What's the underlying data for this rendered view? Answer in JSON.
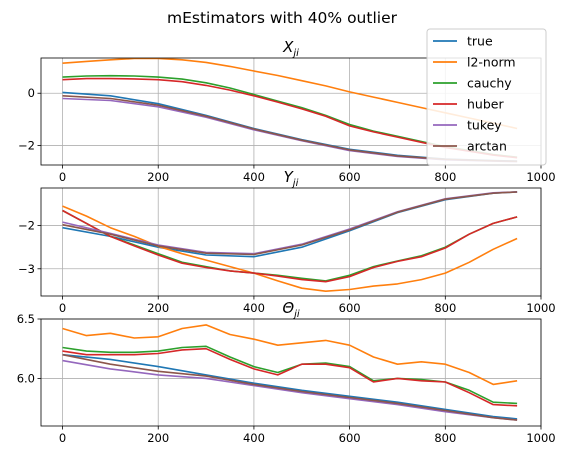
{
  "figure": {
    "suptitle": "mEstimators with 40% outlier",
    "legend": [
      "true",
      "l2-norm",
      "cauchy",
      "huber",
      "tukey",
      "arctan"
    ],
    "colors": {
      "true": "#1f77b4",
      "l2-norm": "#ff7f0e",
      "cauchy": "#2ca02c",
      "huber": "#d62728",
      "tukey": "#9467bd",
      "arctan": "#8c564b"
    }
  },
  "chart_data": [
    {
      "type": "line",
      "title": "X_ji",
      "title_main": "X",
      "title_sub": "ji",
      "xlim": [
        -45,
        1000
      ],
      "ylim": [
        -2.75,
        1.35
      ],
      "xticks": [
        0,
        200,
        400,
        600,
        800,
        1000
      ],
      "yticks": [
        0,
        -2
      ],
      "ytick_labels": [
        "0",
        "−2"
      ],
      "grid": true,
      "legend_position": "top-right",
      "series": [
        {
          "name": "true",
          "x": [
            0,
            100,
            200,
            300,
            400,
            500,
            600,
            700,
            800,
            900,
            950
          ],
          "y": [
            0.03,
            -0.1,
            -0.4,
            -0.85,
            -1.35,
            -1.78,
            -2.15,
            -2.38,
            -2.52,
            -2.58,
            -2.6
          ]
        },
        {
          "name": "l2-norm",
          "x": [
            0,
            50,
            100,
            150,
            200,
            250,
            300,
            350,
            400,
            450,
            500,
            550,
            600,
            650,
            700,
            750,
            800,
            850,
            900,
            950
          ],
          "y": [
            1.15,
            1.22,
            1.28,
            1.33,
            1.33,
            1.28,
            1.18,
            1.03,
            0.85,
            0.68,
            0.48,
            0.28,
            0.05,
            -0.15,
            -0.35,
            -0.55,
            -0.75,
            -0.95,
            -1.15,
            -1.35
          ]
        },
        {
          "name": "cauchy",
          "x": [
            0,
            50,
            100,
            150,
            200,
            250,
            300,
            350,
            400,
            450,
            500,
            550,
            600,
            650,
            700,
            750,
            800,
            850,
            900,
            950
          ],
          "y": [
            0.62,
            0.66,
            0.67,
            0.66,
            0.62,
            0.54,
            0.4,
            0.2,
            -0.05,
            -0.3,
            -0.55,
            -0.85,
            -1.2,
            -1.45,
            -1.65,
            -1.85,
            -2.05,
            -2.2,
            -2.35,
            -2.45
          ]
        },
        {
          "name": "huber",
          "x": [
            0,
            50,
            100,
            150,
            200,
            250,
            300,
            350,
            400,
            450,
            500,
            550,
            600,
            650,
            700,
            750,
            800,
            850,
            900,
            950
          ],
          "y": [
            0.52,
            0.56,
            0.56,
            0.55,
            0.52,
            0.44,
            0.3,
            0.12,
            -0.1,
            -0.34,
            -0.6,
            -0.88,
            -1.25,
            -1.48,
            -1.68,
            -1.88,
            -2.08,
            -2.22,
            -2.37,
            -2.47
          ]
        },
        {
          "name": "tukey",
          "x": [
            0,
            100,
            200,
            300,
            400,
            500,
            600,
            700,
            800,
            900,
            950
          ],
          "y": [
            -0.2,
            -0.28,
            -0.52,
            -0.92,
            -1.4,
            -1.82,
            -2.2,
            -2.42,
            -2.55,
            -2.6,
            -2.62
          ]
        },
        {
          "name": "arctan",
          "x": [
            0,
            100,
            200,
            300,
            400,
            500,
            600,
            700,
            800,
            900,
            950
          ],
          "y": [
            -0.1,
            -0.2,
            -0.46,
            -0.88,
            -1.37,
            -1.8,
            -2.17,
            -2.4,
            -2.53,
            -2.59,
            -2.61
          ]
        }
      ]
    },
    {
      "type": "line",
      "title": "Y_ji",
      "title_main": "Y",
      "title_sub": "ji",
      "xlim": [
        -45,
        1000
      ],
      "ylim": [
        -3.63,
        -1.13
      ],
      "xticks": [
        0,
        200,
        400,
        600,
        800,
        1000
      ],
      "yticks": [
        -2,
        -3
      ],
      "ytick_labels": [
        "−2",
        "−3"
      ],
      "grid": true,
      "series": [
        {
          "name": "true",
          "x": [
            0,
            100,
            200,
            300,
            400,
            500,
            600,
            700,
            800,
            900,
            950
          ],
          "y": [
            -2.05,
            -2.25,
            -2.5,
            -2.68,
            -2.72,
            -2.5,
            -2.12,
            -1.7,
            -1.4,
            -1.25,
            -1.22
          ]
        },
        {
          "name": "l2-norm",
          "x": [
            0,
            50,
            100,
            150,
            200,
            250,
            300,
            350,
            400,
            450,
            500,
            550,
            600,
            650,
            700,
            750,
            800,
            850,
            900,
            950
          ],
          "y": [
            -1.55,
            -1.78,
            -2.05,
            -2.25,
            -2.48,
            -2.65,
            -2.8,
            -2.95,
            -3.1,
            -3.28,
            -3.45,
            -3.52,
            -3.48,
            -3.4,
            -3.35,
            -3.25,
            -3.1,
            -2.85,
            -2.55,
            -2.3
          ]
        },
        {
          "name": "cauchy",
          "x": [
            0,
            50,
            100,
            150,
            200,
            250,
            300,
            350,
            400,
            450,
            500,
            550,
            600,
            650,
            700,
            750,
            800,
            850,
            900,
            950
          ],
          "y": [
            -1.65,
            -1.95,
            -2.25,
            -2.45,
            -2.65,
            -2.85,
            -2.95,
            -3.05,
            -3.1,
            -3.15,
            -3.22,
            -3.28,
            -3.15,
            -2.95,
            -2.82,
            -2.7,
            -2.5,
            -2.2,
            -1.95,
            -1.8
          ]
        },
        {
          "name": "huber",
          "x": [
            0,
            50,
            100,
            150,
            200,
            250,
            300,
            350,
            400,
            450,
            500,
            550,
            600,
            650,
            700,
            750,
            800,
            850,
            900,
            950
          ],
          "y": [
            -1.65,
            -1.95,
            -2.25,
            -2.47,
            -2.68,
            -2.87,
            -2.97,
            -3.05,
            -3.1,
            -3.17,
            -3.25,
            -3.3,
            -3.18,
            -2.97,
            -2.83,
            -2.72,
            -2.52,
            -2.2,
            -1.95,
            -1.8
          ]
        },
        {
          "name": "tukey",
          "x": [
            0,
            100,
            200,
            300,
            400,
            500,
            600,
            700,
            800,
            900,
            950
          ],
          "y": [
            -1.92,
            -2.18,
            -2.45,
            -2.62,
            -2.65,
            -2.43,
            -2.08,
            -1.68,
            -1.38,
            -1.24,
            -1.22
          ]
        },
        {
          "name": "arctan",
          "x": [
            0,
            100,
            200,
            300,
            400,
            500,
            600,
            700,
            800,
            900,
            950
          ],
          "y": [
            -1.98,
            -2.2,
            -2.47,
            -2.64,
            -2.67,
            -2.45,
            -2.1,
            -1.69,
            -1.39,
            -1.25,
            -1.22
          ]
        }
      ]
    },
    {
      "type": "line",
      "title": "Θ_ji",
      "title_main": "Θ",
      "title_sub": "ji",
      "xlim": [
        -45,
        1000
      ],
      "ylim": [
        5.6,
        6.5
      ],
      "xticks": [
        0,
        200,
        400,
        600,
        800,
        1000
      ],
      "yticks": [
        6.5,
        6.0
      ],
      "ytick_labels": [
        "6.5",
        "6.0"
      ],
      "grid": true,
      "series": [
        {
          "name": "true",
          "x": [
            0,
            100,
            200,
            300,
            400,
            500,
            600,
            700,
            800,
            900,
            950
          ],
          "y": [
            6.2,
            6.16,
            6.1,
            6.03,
            5.96,
            5.9,
            5.85,
            5.8,
            5.74,
            5.68,
            5.66
          ]
        },
        {
          "name": "l2-norm",
          "x": [
            0,
            50,
            100,
            150,
            200,
            250,
            300,
            350,
            400,
            450,
            500,
            550,
            600,
            650,
            700,
            750,
            800,
            850,
            900,
            950
          ],
          "y": [
            6.42,
            6.36,
            6.38,
            6.34,
            6.35,
            6.42,
            6.45,
            6.37,
            6.33,
            6.28,
            6.3,
            6.32,
            6.28,
            6.18,
            6.12,
            6.14,
            6.12,
            6.05,
            5.95,
            5.98
          ]
        },
        {
          "name": "cauchy",
          "x": [
            0,
            50,
            100,
            150,
            200,
            250,
            300,
            350,
            400,
            450,
            500,
            550,
            600,
            650,
            700,
            750,
            800,
            850,
            900,
            950
          ],
          "y": [
            6.26,
            6.23,
            6.22,
            6.22,
            6.23,
            6.26,
            6.27,
            6.18,
            6.1,
            6.05,
            6.12,
            6.13,
            6.1,
            5.98,
            6.0,
            5.99,
            5.97,
            5.9,
            5.8,
            5.79
          ]
        },
        {
          "name": "huber",
          "x": [
            0,
            50,
            100,
            150,
            200,
            250,
            300,
            350,
            400,
            450,
            500,
            550,
            600,
            650,
            700,
            750,
            800,
            850,
            900,
            950
          ],
          "y": [
            6.23,
            6.2,
            6.2,
            6.2,
            6.21,
            6.24,
            6.25,
            6.16,
            6.08,
            6.03,
            6.12,
            6.12,
            6.09,
            5.97,
            6.0,
            5.98,
            5.97,
            5.88,
            5.78,
            5.77
          ]
        },
        {
          "name": "tukey",
          "x": [
            0,
            100,
            200,
            300,
            400,
            500,
            600,
            700,
            800,
            900,
            950
          ],
          "y": [
            6.15,
            6.08,
            6.03,
            6.0,
            5.94,
            5.88,
            5.83,
            5.78,
            5.72,
            5.67,
            5.65
          ]
        },
        {
          "name": "arctan",
          "x": [
            0,
            100,
            200,
            300,
            400,
            500,
            600,
            700,
            800,
            900,
            950
          ],
          "y": [
            6.2,
            6.12,
            6.06,
            6.02,
            5.95,
            5.89,
            5.84,
            5.79,
            5.73,
            5.67,
            5.65
          ]
        }
      ]
    }
  ]
}
